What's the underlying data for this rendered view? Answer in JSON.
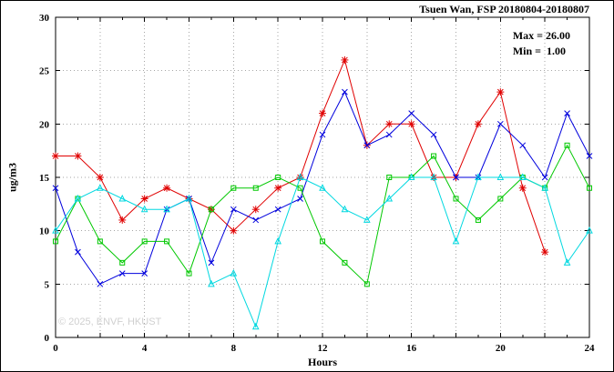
{
  "chart_data": {
    "type": "line",
    "title": "Tsuen Wan, FSP 20180804-20180807",
    "xlabel": "Hours",
    "ylabel": "ug/m3",
    "xlim": [
      0,
      24
    ],
    "ylim": [
      0,
      30
    ],
    "xticks": [
      0,
      4,
      8,
      12,
      16,
      20,
      24
    ],
    "yticks": [
      0,
      5,
      10,
      15,
      20,
      25,
      30
    ],
    "grid": {
      "x_step": 2,
      "y_step": 5,
      "style": "dotted"
    },
    "annotations": {
      "max": "Max = 26.00",
      "min": "Min =  1.00"
    },
    "watermark": "© 2025, ENVF, HKUST",
    "x": [
      0,
      1,
      2,
      3,
      4,
      5,
      6,
      7,
      8,
      9,
      10,
      11,
      12,
      13,
      14,
      15,
      16,
      17,
      18,
      19,
      20,
      21,
      22,
      23,
      24
    ],
    "series": [
      {
        "name": "red",
        "color": "#e00000",
        "marker": "star",
        "values": [
          17,
          17,
          15,
          11,
          13,
          14,
          13,
          12,
          10,
          12,
          14,
          15,
          21,
          26,
          18,
          20,
          20,
          15,
          15,
          20,
          23,
          14,
          8,
          null,
          null
        ]
      },
      {
        "name": "blue",
        "color": "#0000dd",
        "marker": "x",
        "values": [
          14,
          8,
          5,
          6,
          6,
          12,
          13,
          7,
          12,
          11,
          12,
          13,
          19,
          23,
          18,
          19,
          21,
          19,
          15,
          15,
          20,
          18,
          15,
          21,
          17
        ]
      },
      {
        "name": "green",
        "color": "#00c800",
        "marker": "square",
        "values": [
          9,
          13,
          9,
          7,
          9,
          9,
          6,
          12,
          14,
          14,
          15,
          14,
          9,
          7,
          5,
          15,
          15,
          17,
          13,
          11,
          13,
          15,
          14,
          18,
          14
        ]
      },
      {
        "name": "cyan",
        "color": "#00d8e0",
        "marker": "triangle",
        "values": [
          10,
          13,
          14,
          13,
          12,
          12,
          13,
          5,
          6,
          1,
          9,
          15,
          14,
          12,
          11,
          13,
          15,
          15,
          9,
          15,
          15,
          15,
          14,
          7,
          10
        ]
      }
    ]
  }
}
